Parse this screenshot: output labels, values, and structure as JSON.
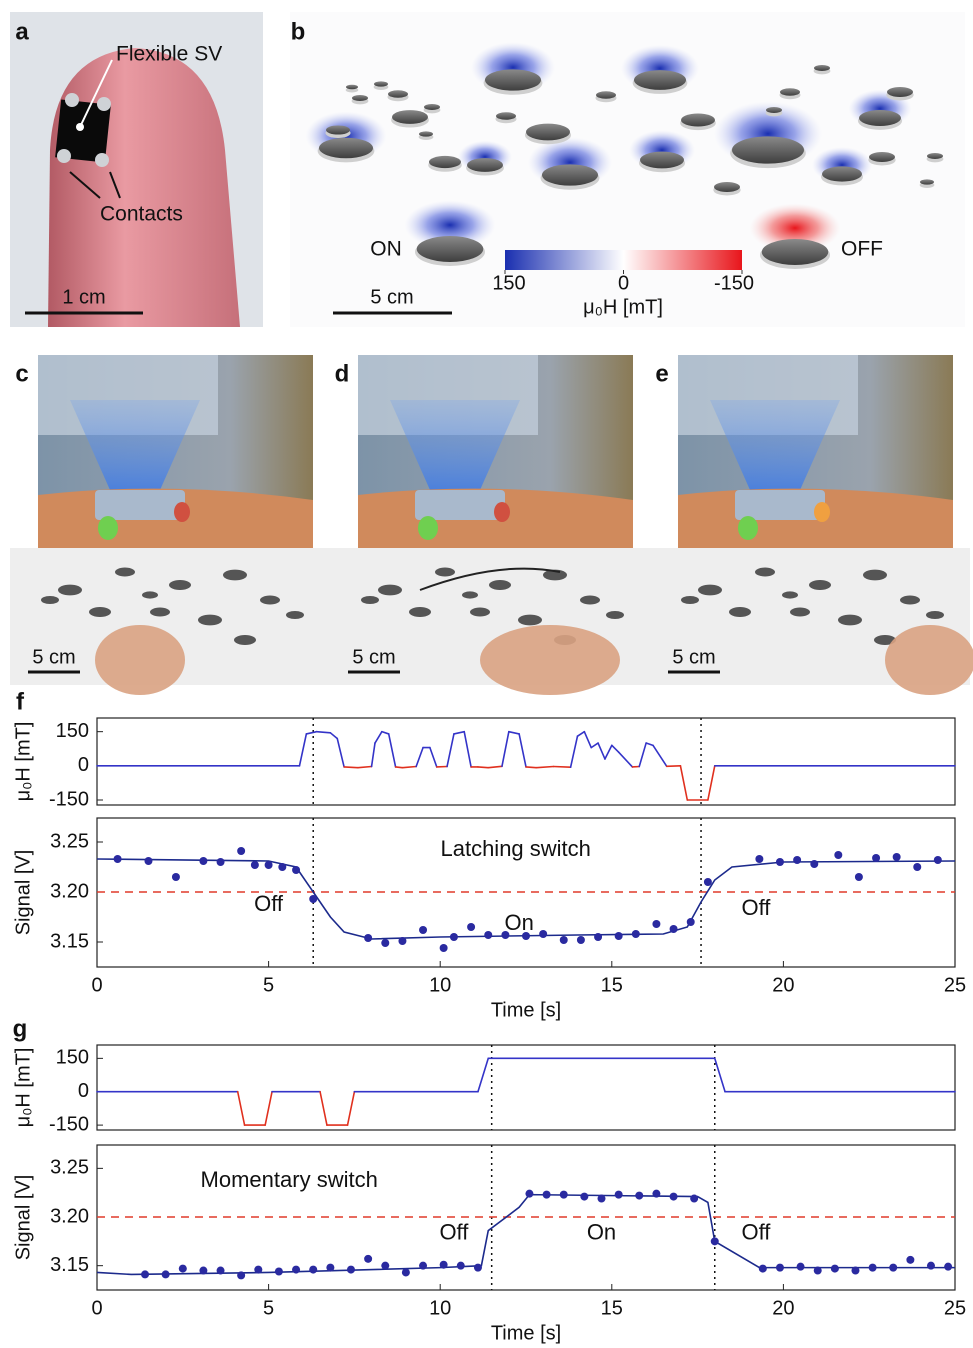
{
  "panel_labels": [
    "a",
    "b",
    "c",
    "d",
    "e",
    "f",
    "g"
  ],
  "panel_a": {
    "sensor_label": "Flexible SV",
    "contacts_label": "Contacts",
    "scale_bar": "1 cm"
  },
  "panel_b": {
    "on_label": "ON",
    "off_label": "OFF",
    "scale_bar": "5 cm",
    "colorbar": {
      "label": "μ₀H [mT]",
      "lim": [
        150,
        -150
      ],
      "ticks": [
        150,
        0,
        -150
      ],
      "colors": [
        "#1a2fb0",
        "#ffffff",
        "#e8151b"
      ]
    }
  },
  "panels_cde": {
    "scale_bars": [
      "5 cm",
      "5 cm",
      "5 cm"
    ]
  },
  "chart_data": [
    {
      "type": "field",
      "ylabel": "μ₀H [mT]",
      "x": [
        0,
        5.9,
        6.1,
        6.4,
        6.8,
        7.0,
        7.2,
        7.6,
        8.0,
        8.1,
        8.3,
        8.5,
        8.7,
        8.9,
        9.3,
        9.5,
        9.7,
        9.9,
        10.2,
        10.4,
        10.7,
        10.9,
        11.1,
        11.4,
        11.8,
        12.0,
        12.3,
        12.5,
        12.8,
        13.3,
        13.8,
        14.0,
        14.2,
        14.4,
        14.6,
        14.8,
        15.0,
        15.2,
        15.6,
        15.8,
        16.0,
        16.2,
        16.6,
        17.0,
        17.2,
        17.8,
        18.0,
        25
      ],
      "values": [
        0,
        0,
        140,
        150,
        145,
        120,
        -5,
        -8,
        -3,
        100,
        150,
        140,
        -5,
        -8,
        -3,
        80,
        80,
        -5,
        -3,
        140,
        150,
        -5,
        -5,
        -8,
        -2,
        150,
        140,
        -5,
        -8,
        -3,
        -6,
        130,
        150,
        80,
        100,
        30,
        90,
        60,
        -5,
        -3,
        100,
        90,
        -2,
        0,
        -150,
        -150,
        0,
        0
      ],
      "colors": {
        "positive": "#3434c8",
        "negative": "#e0301e"
      },
      "xlim": [
        0,
        25
      ],
      "ylim": [
        -172,
        210
      ],
      "yticks": [
        150,
        0,
        -150
      ],
      "markers_x": [
        6.3,
        17.6
      ]
    },
    {
      "type": "signal",
      "ylabel": "Signal [V]",
      "xlabel": "Time [s]",
      "annotations": [
        "Latching switch",
        "Off",
        "On",
        "Off"
      ],
      "fit": {
        "color": "#1c2a8c",
        "x": [
          0,
          5,
          5.8,
          6.3,
          6.8,
          7.2,
          8,
          10,
          14,
          16.5,
          17.2,
          17.6,
          18.0,
          18.5,
          20,
          25
        ],
        "values": [
          3.233,
          3.231,
          3.225,
          3.2,
          3.175,
          3.16,
          3.153,
          3.155,
          3.157,
          3.158,
          3.165,
          3.19,
          3.212,
          3.225,
          3.23,
          3.231
        ]
      },
      "points": {
        "color": "#2a2aa0",
        "x": [
          0.6,
          1.5,
          2.3,
          3.1,
          3.6,
          4.2,
          4.6,
          5.0,
          5.4,
          5.8,
          6.3,
          7.9,
          8.4,
          8.9,
          9.5,
          10.1,
          10.4,
          10.9,
          11.4,
          11.9,
          12.5,
          13.0,
          13.6,
          14.1,
          14.6,
          15.2,
          15.7,
          16.3,
          16.8,
          17.3,
          17.8,
          19.3,
          19.9,
          20.4,
          20.9,
          21.6,
          22.2,
          22.7,
          23.3,
          23.9,
          24.5
        ],
        "values": [
          3.233,
          3.231,
          3.215,
          3.231,
          3.23,
          3.241,
          3.227,
          3.227,
          3.225,
          3.222,
          3.193,
          3.154,
          3.149,
          3.151,
          3.162,
          3.144,
          3.155,
          3.165,
          3.157,
          3.157,
          3.156,
          3.158,
          3.152,
          3.152,
          3.155,
          3.156,
          3.158,
          3.168,
          3.163,
          3.17,
          3.21,
          3.233,
          3.23,
          3.232,
          3.228,
          3.237,
          3.215,
          3.234,
          3.235,
          3.225,
          3.232
        ]
      },
      "threshold": 3.2,
      "threshold_color": "#e03a2a",
      "xlim": [
        0,
        25
      ],
      "ylim": [
        3.125,
        3.274
      ],
      "xticks": [
        0,
        5,
        10,
        15,
        20,
        25
      ],
      "yticks": [
        3.15,
        {
          "value": 3.2,
          "label": "3.20"
        },
        3.25
      ],
      "markers_x": [
        6.3,
        17.6
      ]
    },
    {
      "type": "field",
      "ylabel": "μ₀H [mT]",
      "x": [
        0,
        4.1,
        4.3,
        4.9,
        5.1,
        6.5,
        6.7,
        7.3,
        7.5,
        11.1,
        11.4,
        18.0,
        18.3,
        25
      ],
      "values": [
        0,
        0,
        -150,
        -150,
        0,
        0,
        -150,
        -150,
        0,
        0,
        150,
        150,
        0,
        0
      ],
      "colors": {
        "positive": "#3434c8",
        "negative": "#e0301e"
      },
      "xlim": [
        0,
        25
      ],
      "ylim": [
        -172,
        210
      ],
      "yticks": [
        150,
        0,
        -150
      ],
      "markers_x": [
        11.5,
        18.0
      ]
    },
    {
      "type": "signal",
      "ylabel": "Signal [V]",
      "xlabel": "Time [s]",
      "annotations": [
        "Momentary switch",
        "Off",
        "On",
        "Off"
      ],
      "fit": {
        "color": "#1c2a8c",
        "x": [
          0,
          1,
          5,
          10,
          11.2,
          11.4,
          12.3,
          12.6,
          17.5,
          17.8,
          18.0,
          19.3,
          25
        ],
        "values": [
          3.143,
          3.141,
          3.143,
          3.148,
          3.15,
          3.186,
          3.21,
          3.223,
          3.221,
          3.215,
          3.175,
          3.148,
          3.148
        ]
      },
      "points": {
        "color": "#2a2aa0",
        "x": [
          1.4,
          2.0,
          2.5,
          3.1,
          3.6,
          4.2,
          4.7,
          5.3,
          5.8,
          6.3,
          6.8,
          7.4,
          7.9,
          8.4,
          9.0,
          9.5,
          10.1,
          10.6,
          11.1,
          12.6,
          13.1,
          13.6,
          14.2,
          14.7,
          15.2,
          15.8,
          16.3,
          16.8,
          17.4,
          18.0,
          19.4,
          19.9,
          20.5,
          21.0,
          21.5,
          22.1,
          22.6,
          23.2,
          23.7,
          24.3,
          24.8
        ],
        "values": [
          3.141,
          3.141,
          3.147,
          3.145,
          3.145,
          3.14,
          3.146,
          3.144,
          3.146,
          3.146,
          3.148,
          3.146,
          3.157,
          3.15,
          3.143,
          3.15,
          3.151,
          3.15,
          3.148,
          3.224,
          3.223,
          3.223,
          3.221,
          3.219,
          3.223,
          3.222,
          3.224,
          3.221,
          3.219,
          3.175,
          3.147,
          3.148,
          3.149,
          3.145,
          3.147,
          3.145,
          3.148,
          3.148,
          3.156,
          3.15,
          3.149
        ]
      },
      "threshold": 3.2,
      "threshold_color": "#e03a2a",
      "xlim": [
        0,
        25
      ],
      "ylim": [
        3.125,
        3.274
      ],
      "xticks": [
        0,
        5,
        10,
        15,
        20,
        25
      ],
      "yticks": [
        3.15,
        {
          "value": 3.2,
          "label": "3.20"
        },
        3.25
      ],
      "markers_x": [
        11.5,
        18.0
      ]
    }
  ]
}
